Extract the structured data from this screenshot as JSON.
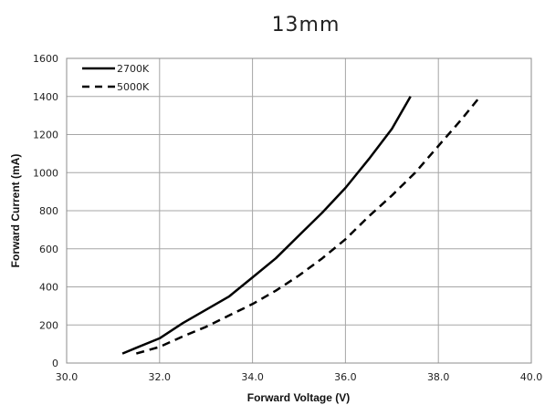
{
  "chart_data": {
    "type": "line",
    "title": "13mm",
    "xlabel": "Forward Voltage (V)",
    "ylabel": "Forward Current (mA)",
    "xlim": [
      30.0,
      40.0
    ],
    "ylim": [
      0,
      1600
    ],
    "x_ticks": [
      "30.0",
      "32.0",
      "34.0",
      "36.0",
      "38.0",
      "40.0"
    ],
    "y_ticks": [
      "0",
      "200",
      "400",
      "600",
      "800",
      "1000",
      "1200",
      "1400",
      "1600"
    ],
    "grid": true,
    "legend_position": "top-left",
    "series": [
      {
        "name": "2700K",
        "style": "solid",
        "color": "#000000",
        "points": [
          [
            31.2,
            50
          ],
          [
            31.5,
            80
          ],
          [
            32.0,
            130
          ],
          [
            32.5,
            210
          ],
          [
            33.0,
            280
          ],
          [
            33.5,
            350
          ],
          [
            34.0,
            450
          ],
          [
            34.5,
            550
          ],
          [
            35.0,
            670
          ],
          [
            35.5,
            790
          ],
          [
            36.0,
            920
          ],
          [
            36.5,
            1070
          ],
          [
            37.0,
            1230
          ],
          [
            37.4,
            1400
          ]
        ]
      },
      {
        "name": "5000K",
        "style": "dashed",
        "color": "#000000",
        "points": [
          [
            31.5,
            50
          ],
          [
            32.0,
            85
          ],
          [
            32.5,
            140
          ],
          [
            33.0,
            190
          ],
          [
            33.5,
            250
          ],
          [
            34.0,
            310
          ],
          [
            34.5,
            380
          ],
          [
            35.0,
            460
          ],
          [
            35.5,
            550
          ],
          [
            36.0,
            650
          ],
          [
            36.5,
            770
          ],
          [
            37.0,
            880
          ],
          [
            37.5,
            1000
          ],
          [
            38.0,
            1140
          ],
          [
            38.5,
            1280
          ],
          [
            38.9,
            1400
          ]
        ]
      }
    ]
  }
}
